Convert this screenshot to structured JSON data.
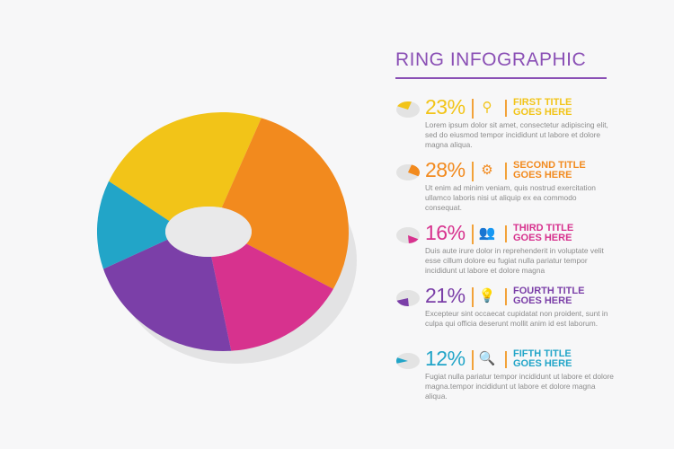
{
  "title": "RING INFOGRAPHIC",
  "items": [
    {
      "pct": "23%",
      "icon": "map-pin-icon",
      "glyph": "⚲",
      "head1": "FIRST TITLE",
      "head2": "GOES HERE",
      "desc": "Lorem ipsum dolor sit amet, consectetur adipiscing elit, sed do eiusmod tempor incididunt ut labore et dolore magna aliqua.",
      "color": "#f2c418"
    },
    {
      "pct": "28%",
      "icon": "gears-icon",
      "glyph": "⚙",
      "head1": "SECOND TITLE",
      "head2": "GOES HERE",
      "desc": "Ut enim ad minim veniam, quis nostrud exercitation ullamco laboris nisi ut aliquip ex ea commodo consequat.",
      "color": "#f28a1e"
    },
    {
      "pct": "16%",
      "icon": "users-icon",
      "glyph": "👥",
      "head1": "THIRD TITLE",
      "head2": "GOES HERE",
      "desc": "Duis aute irure dolor in reprehenderit in voluptate velit esse cillum dolore eu fugiat nulla pariatur tempor incididunt ut labore et dolore magna",
      "color": "#d7328e"
    },
    {
      "pct": "21%",
      "icon": "lightbulb-icon",
      "glyph": "💡",
      "head1": "FOURTH TITLE",
      "head2": "GOES HERE",
      "desc": "Excepteur sint occaecat cupidatat non proident, sunt in culpa qui officia deserunt mollit anim id est laborum.",
      "color": "#7b3fa8"
    },
    {
      "pct": "12%",
      "icon": "search-icon",
      "glyph": "🔍",
      "head1": "FIFTH TITLE",
      "head2": "GOES HERE",
      "desc": "Fugiat nulla pariatur tempor incididunt ut labore et dolore magna.tempor incididunt ut labore et dolore magna aliqua.",
      "color": "#22a5c8"
    }
  ],
  "chart_data": {
    "type": "pie",
    "title": "RING INFOGRAPHIC",
    "categories": [
      "FIRST TITLE",
      "SECOND TITLE",
      "THIRD TITLE",
      "FOURTH TITLE",
      "FIFTH TITLE"
    ],
    "values": [
      23,
      28,
      16,
      21,
      12
    ],
    "colors": [
      "#f2c418",
      "#f28a1e",
      "#d7328e",
      "#7b3fa8",
      "#22a5c8"
    ]
  }
}
